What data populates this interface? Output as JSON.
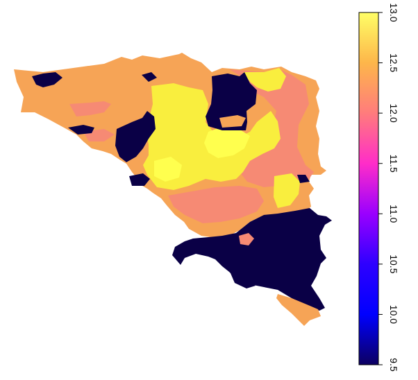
{
  "map": {
    "type": "raster",
    "title": "",
    "background": "#ffffff",
    "nodata_color": "#ffffff",
    "region_colors": {
      "low": "#0a0046",
      "mid": "#f6a456",
      "salmon": "#f68a74",
      "high": "#f9ee3e",
      "yellow_bright": "#ffff4e"
    }
  },
  "legend": {
    "type": "colorbar",
    "orientation": "vertical",
    "placement": "right",
    "range": [
      9.5,
      13.0
    ],
    "ticks": [
      "9.5",
      "10.0",
      "10.5",
      "11.0",
      "11.5",
      "12.0",
      "12.5",
      "13.0"
    ],
    "color_stops": [
      {
        "value": 9.5,
        "color": "#0d0061"
      },
      {
        "value": 10.0,
        "color": "#0000ff"
      },
      {
        "value": 10.5,
        "color": "#2e00ff"
      },
      {
        "value": 11.0,
        "color": "#9a00ff"
      },
      {
        "value": 11.5,
        "color": "#ff2dc8"
      },
      {
        "value": 12.0,
        "color": "#ff7c7c"
      },
      {
        "value": 12.5,
        "color": "#fdb64a"
      },
      {
        "value": 13.0,
        "color": "#ffff66"
      }
    ]
  }
}
